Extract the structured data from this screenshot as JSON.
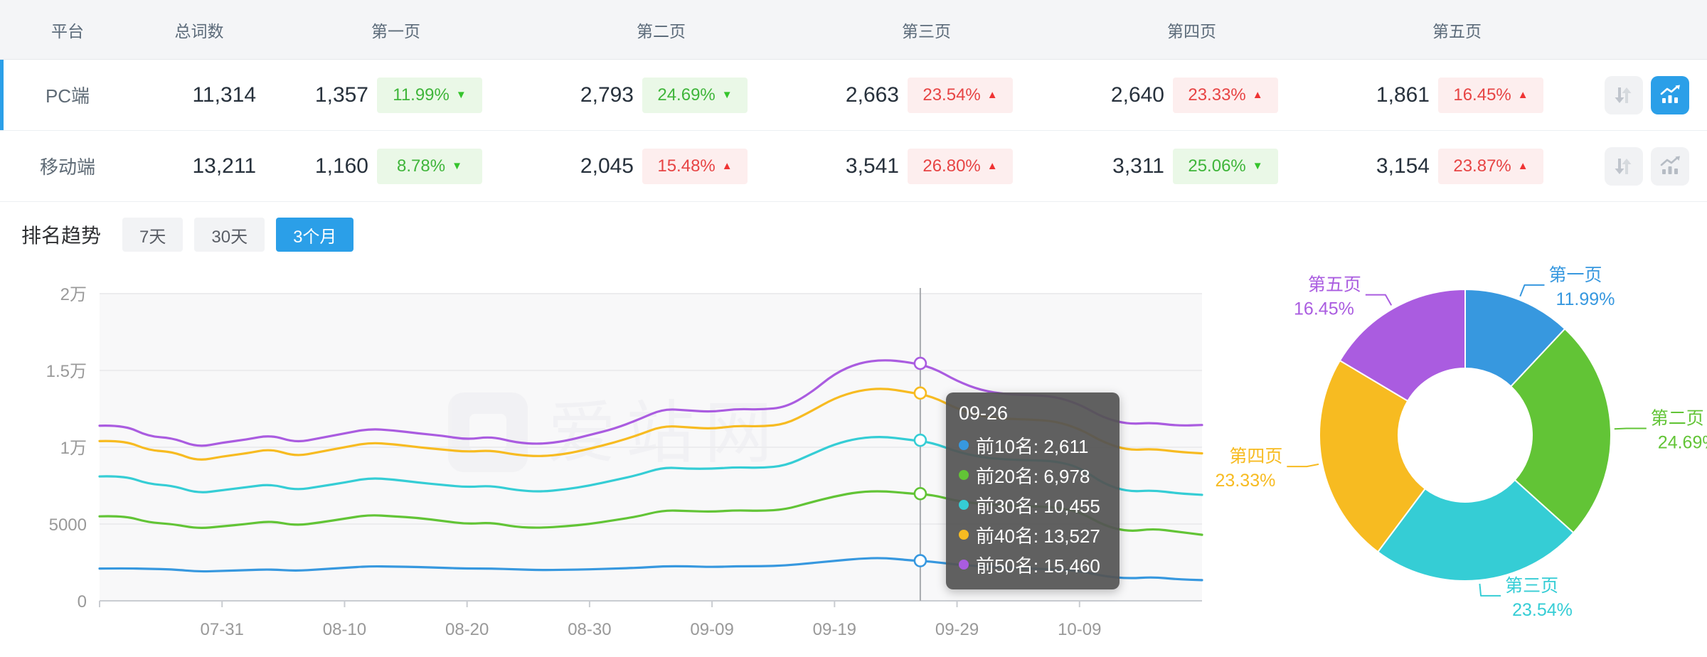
{
  "colors": {
    "accent_blue": "#2b9fe8",
    "badge_green_text": "#3fb53a",
    "badge_green_bg": "#eaf8e7",
    "badge_red_text": "#e74444",
    "badge_red_bg": "#fdeeee",
    "axis_text": "#999999",
    "grid_line": "#ececee",
    "plot_bg": "#f8f8f9",
    "tooltip_bg": "rgba(84,84,84,0.93)"
  },
  "table": {
    "headers": {
      "platform": "平台",
      "total": "总词数",
      "pages": [
        "第一页",
        "第二页",
        "第三页",
        "第四页",
        "第五页"
      ]
    },
    "rows": [
      {
        "platform": "PC端",
        "total": "11,314",
        "selected": true,
        "sort_active": false,
        "chart_view_active": true,
        "pages": [
          {
            "count": "1,357",
            "pct": "11.99%",
            "dir": "down",
            "tone": "green"
          },
          {
            "count": "2,793",
            "pct": "24.69%",
            "dir": "down",
            "tone": "green"
          },
          {
            "count": "2,663",
            "pct": "23.54%",
            "dir": "up",
            "tone": "red"
          },
          {
            "count": "2,640",
            "pct": "23.33%",
            "dir": "up",
            "tone": "red"
          },
          {
            "count": "1,861",
            "pct": "16.45%",
            "dir": "up",
            "tone": "red"
          }
        ]
      },
      {
        "platform": "移动端",
        "total": "13,211",
        "selected": false,
        "sort_active": false,
        "chart_view_active": false,
        "pages": [
          {
            "count": "1,160",
            "pct": "8.78%",
            "dir": "down",
            "tone": "green"
          },
          {
            "count": "2,045",
            "pct": "15.48%",
            "dir": "up",
            "tone": "red"
          },
          {
            "count": "3,541",
            "pct": "26.80%",
            "dir": "up",
            "tone": "red"
          },
          {
            "count": "3,311",
            "pct": "25.06%",
            "dir": "down",
            "tone": "green"
          },
          {
            "count": "3,154",
            "pct": "23.87%",
            "dir": "up",
            "tone": "red"
          }
        ]
      }
    ]
  },
  "trend": {
    "title": "排名趋势",
    "ranges": [
      {
        "label": "7天",
        "active": false
      },
      {
        "label": "30天",
        "active": false
      },
      {
        "label": "3个月",
        "active": true
      }
    ]
  },
  "watermark": "爱站网",
  "chart_data": [
    {
      "type": "line",
      "title": "排名趋势（3个月）",
      "ylim": [
        0,
        20000
      ],
      "grid": true,
      "legend_position": "none",
      "y_ticks": [
        {
          "value": 0,
          "label": "0"
        },
        {
          "value": 5000,
          "label": "5000"
        },
        {
          "value": 10000,
          "label": "1万"
        },
        {
          "value": 15000,
          "label": "1.5万"
        },
        {
          "value": 20000,
          "label": "2万"
        }
      ],
      "x_ticks": [
        {
          "day": 10,
          "label": "07-31"
        },
        {
          "day": 20,
          "label": "08-10"
        },
        {
          "day": 30,
          "label": "08-20"
        },
        {
          "day": 40,
          "label": "08-30"
        },
        {
          "day": 50,
          "label": "09-09"
        },
        {
          "day": 60,
          "label": "09-19"
        },
        {
          "day": 70,
          "label": "09-29"
        },
        {
          "day": 80,
          "label": "10-09"
        }
      ],
      "day_span": 90,
      "days": [
        0,
        2,
        4,
        6,
        8,
        10,
        12,
        14,
        16,
        18,
        20,
        22,
        24,
        26,
        28,
        30,
        32,
        34,
        36,
        38,
        40,
        42,
        44,
        46,
        48,
        50,
        52,
        54,
        56,
        58,
        60,
        62,
        64,
        66,
        68,
        70,
        72,
        74,
        76,
        78,
        80,
        82,
        84,
        86,
        88,
        90
      ],
      "series": [
        {
          "name": "前10名",
          "color": "#3798df",
          "values": [
            2100,
            2120,
            2080,
            2050,
            1900,
            1950,
            2000,
            2050,
            1950,
            2050,
            2150,
            2250,
            2230,
            2200,
            2150,
            2100,
            2100,
            2050,
            2000,
            2020,
            2050,
            2100,
            2150,
            2250,
            2250,
            2200,
            2250,
            2250,
            2300,
            2450,
            2600,
            2750,
            2800,
            2650,
            2550,
            2350,
            2250,
            2150,
            2100,
            2050,
            1950,
            1600,
            1450,
            1550,
            1400,
            1350
          ]
        },
        {
          "name": "前20名",
          "color": "#62c436",
          "values": [
            5500,
            5550,
            5100,
            5000,
            4700,
            4850,
            5000,
            5200,
            4900,
            5100,
            5350,
            5600,
            5500,
            5400,
            5200,
            5000,
            5100,
            4800,
            4750,
            4850,
            5000,
            5250,
            5500,
            5900,
            5850,
            5800,
            5900,
            5850,
            5950,
            6400,
            6800,
            7100,
            7150,
            7000,
            6900,
            6500,
            6300,
            6200,
            6150,
            6100,
            5800,
            4900,
            4500,
            4700,
            4500,
            4300
          ]
        },
        {
          "name": "前30名",
          "color": "#35cdd5",
          "values": [
            8100,
            8150,
            7600,
            7500,
            7000,
            7200,
            7400,
            7600,
            7200,
            7450,
            7700,
            8000,
            7900,
            7700,
            7550,
            7400,
            7500,
            7200,
            7100,
            7250,
            7500,
            7850,
            8200,
            8700,
            8600,
            8600,
            8700,
            8650,
            8800,
            9500,
            10200,
            10600,
            10700,
            10500,
            10300,
            9700,
            9350,
            9200,
            9150,
            9100,
            8700,
            7600,
            7100,
            7200,
            7000,
            6900
          ]
        },
        {
          "name": "前40名",
          "color": "#f7bb21",
          "values": [
            10400,
            10450,
            9800,
            9700,
            9100,
            9400,
            9600,
            9900,
            9400,
            9700,
            10000,
            10300,
            10200,
            10000,
            9850,
            9700,
            9800,
            9500,
            9400,
            9550,
            9900,
            10300,
            10800,
            11400,
            11300,
            11200,
            11400,
            11350,
            11500,
            12300,
            13200,
            13700,
            13850,
            13600,
            13300,
            12500,
            12000,
            11850,
            11800,
            11700,
            11200,
            10300,
            9800,
            9900,
            9700,
            9600
          ]
        },
        {
          "name": "前50名",
          "color": "#aa5ce0",
          "values": [
            11400,
            11450,
            10700,
            10600,
            10000,
            10300,
            10500,
            10800,
            10300,
            10600,
            10900,
            11200,
            11100,
            10900,
            10750,
            10500,
            10700,
            10300,
            10200,
            10400,
            10800,
            11200,
            11800,
            12500,
            12400,
            12300,
            12500,
            12450,
            12600,
            13500,
            14800,
            15500,
            15700,
            15550,
            15200,
            14300,
            13700,
            13450,
            13400,
            13300,
            12800,
            11900,
            11500,
            11600,
            11400,
            11450
          ]
        }
      ],
      "hover": {
        "date": "09-26",
        "day": 67,
        "items": [
          {
            "name": "前10名",
            "value": "2,611",
            "num": 2611
          },
          {
            "name": "前20名",
            "value": "6,978",
            "num": 6978
          },
          {
            "name": "前30名",
            "value": "10,455",
            "num": 10455
          },
          {
            "name": "前40名",
            "value": "13,527",
            "num": 13527
          },
          {
            "name": "前50名",
            "value": "15,460",
            "num": 15460
          }
        ]
      }
    },
    {
      "type": "pie",
      "donut": true,
      "start_angle_deg": 0,
      "clockwise": true,
      "label_format": "name + percent",
      "slices": [
        {
          "label": "第一页",
          "pct": 11.99,
          "color": "#3798df"
        },
        {
          "label": "第二页",
          "pct": 24.69,
          "color": "#62c436"
        },
        {
          "label": "第三页",
          "pct": 23.54,
          "color": "#35cdd5"
        },
        {
          "label": "第四页",
          "pct": 23.33,
          "color": "#f7bb21"
        },
        {
          "label": "第五页",
          "pct": 16.45,
          "color": "#aa5ce0"
        }
      ]
    }
  ]
}
